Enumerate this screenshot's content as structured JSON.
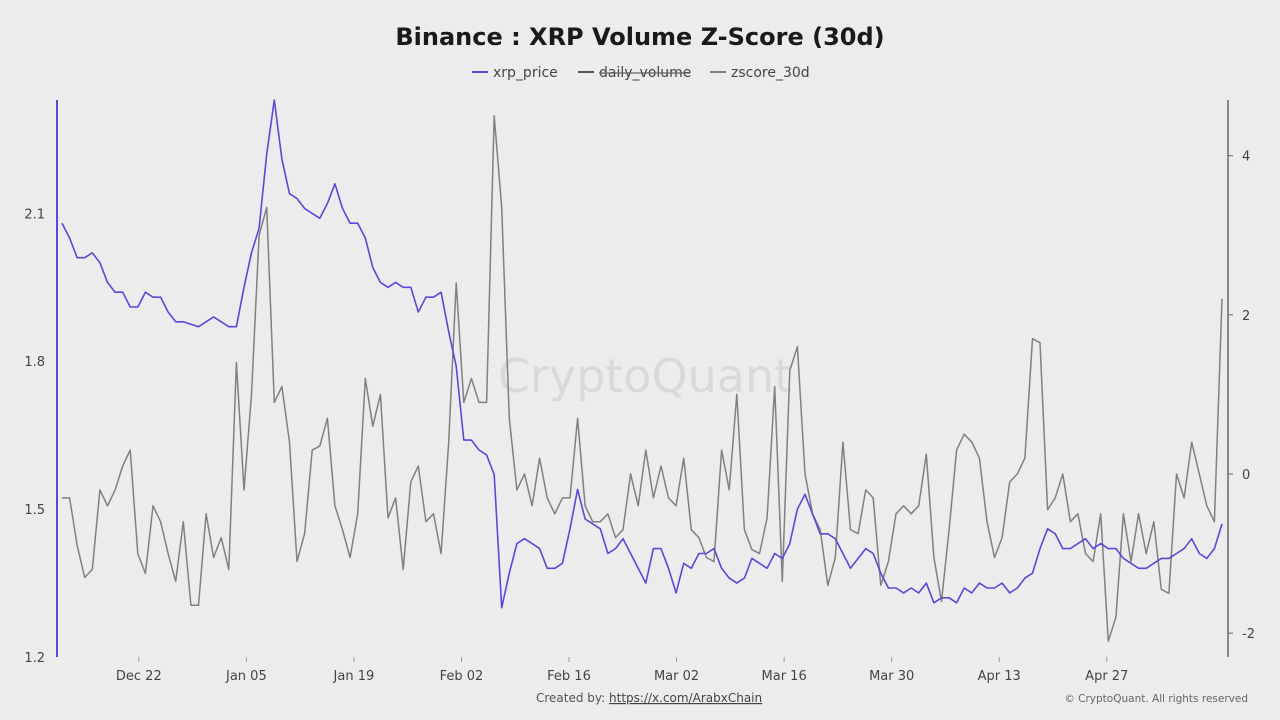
{
  "chart_data": {
    "type": "line",
    "title": "Binance : XRP Volume Z-Score (30d)",
    "legend_position": "top-center",
    "watermark": "CryptoQuant",
    "footer_created_by": "Created by: ",
    "footer_link": "https://x.com/ArabxChain",
    "footer_copyright": "© CryptoQuant. All rights reserved",
    "x_tick_labels": [
      "Dec 22",
      "Jan 05",
      "Jan 19",
      "Feb 02",
      "Feb 16",
      "Mar 02",
      "Mar 16",
      "Mar 30",
      "Apr 13",
      "Apr 27"
    ],
    "x_tick_days": [
      10,
      24,
      38,
      52,
      66,
      80,
      94,
      108,
      122,
      136
    ],
    "x_range_days": [
      0,
      151
    ],
    "y_left": {
      "range": [
        1.2,
        2.33
      ],
      "ticks": [
        1.2,
        1.5,
        1.8,
        2.1
      ],
      "color": "#5b48d9"
    },
    "y_right": {
      "range": [
        -2.3,
        4.7
      ],
      "ticks": [
        -2,
        0,
        2,
        4
      ],
      "color": "#555555"
    },
    "grid": false,
    "series": [
      {
        "name": "xrp_price",
        "axis": "left",
        "color": "#5b48d9",
        "hidden": false,
        "values": [
          2.08,
          2.05,
          2.01,
          2.01,
          2.02,
          2.0,
          1.96,
          1.94,
          1.94,
          1.91,
          1.91,
          1.94,
          1.93,
          1.93,
          1.9,
          1.88,
          1.88,
          1.875,
          1.87,
          1.88,
          1.89,
          1.88,
          1.87,
          1.87,
          1.95,
          2.02,
          2.07,
          2.22,
          2.33,
          2.21,
          2.14,
          2.13,
          2.11,
          2.1,
          2.09,
          2.12,
          2.16,
          2.11,
          2.08,
          2.08,
          2.05,
          1.99,
          1.96,
          1.95,
          1.96,
          1.95,
          1.95,
          1.9,
          1.93,
          1.93,
          1.94,
          1.86,
          1.79,
          1.64,
          1.64,
          1.62,
          1.61,
          1.57,
          1.3,
          1.37,
          1.43,
          1.44,
          1.43,
          1.42,
          1.38,
          1.38,
          1.39,
          1.46,
          1.54,
          1.48,
          1.47,
          1.46,
          1.41,
          1.42,
          1.44,
          1.41,
          1.38,
          1.35,
          1.42,
          1.42,
          1.38,
          1.33,
          1.39,
          1.38,
          1.41,
          1.41,
          1.42,
          1.38,
          1.36,
          1.35,
          1.36,
          1.4,
          1.39,
          1.38,
          1.41,
          1.4,
          1.43,
          1.5,
          1.53,
          1.49,
          1.45,
          1.45,
          1.44,
          1.41,
          1.38,
          1.4,
          1.42,
          1.41,
          1.37,
          1.34,
          1.34,
          1.33,
          1.34,
          1.33,
          1.35,
          1.31,
          1.32,
          1.32,
          1.31,
          1.34,
          1.33,
          1.35,
          1.34,
          1.34,
          1.35,
          1.33,
          1.34,
          1.36,
          1.37,
          1.42,
          1.46,
          1.45,
          1.42,
          1.42,
          1.43,
          1.44,
          1.42,
          1.43,
          1.42,
          1.42,
          1.4,
          1.39,
          1.38,
          1.38,
          1.39,
          1.4,
          1.4,
          1.41,
          1.42,
          1.44,
          1.41,
          1.4,
          1.42,
          1.47
        ]
      },
      {
        "name": "daily_volume",
        "axis": "right",
        "color": "#555555",
        "hidden": true,
        "values": []
      },
      {
        "name": "zscore_30d",
        "axis": "right",
        "color": "#808080",
        "hidden": false,
        "values": [
          -0.3,
          -0.3,
          -0.9,
          -1.3,
          -1.2,
          -0.2,
          -0.4,
          -0.2,
          0.1,
          0.3,
          -1.0,
          -1.25,
          -0.4,
          -0.6,
          -1.0,
          -1.35,
          -0.6,
          -1.65,
          -1.65,
          -0.5,
          -1.05,
          -0.8,
          -1.2,
          1.4,
          -0.2,
          1.0,
          3.0,
          3.35,
          0.9,
          1.1,
          0.4,
          -1.1,
          -0.75,
          0.3,
          0.35,
          0.7,
          -0.4,
          -0.7,
          -1.05,
          -0.5,
          1.2,
          0.6,
          1.0,
          -0.55,
          -0.3,
          -1.2,
          -0.1,
          0.1,
          -0.6,
          -0.5,
          -1.0,
          0.4,
          2.4,
          0.9,
          1.2,
          0.9,
          0.9,
          4.5,
          3.35,
          0.7,
          -0.2,
          0.0,
          -0.4,
          0.2,
          -0.3,
          -0.5,
          -0.3,
          -0.3,
          0.7,
          -0.4,
          -0.6,
          -0.6,
          -0.5,
          -0.8,
          -0.7,
          0.0,
          -0.4,
          0.3,
          -0.3,
          0.1,
          -0.3,
          -0.4,
          0.2,
          -0.7,
          -0.8,
          -1.05,
          -1.1,
          0.3,
          -0.2,
          1.0,
          -0.7,
          -0.95,
          -1.0,
          -0.55,
          1.1,
          -1.35,
          1.3,
          1.6,
          0.0,
          -0.5,
          -0.7,
          -1.4,
          -1.05,
          0.4,
          -0.7,
          -0.75,
          -0.2,
          -0.3,
          -1.4,
          -1.1,
          -0.5,
          -0.4,
          -0.5,
          -0.4,
          0.25,
          -1.05,
          -1.6,
          -0.7,
          0.3,
          0.5,
          0.4,
          0.2,
          -0.6,
          -1.05,
          -0.8,
          -0.1,
          0.0,
          0.2,
          1.7,
          1.65,
          -0.45,
          -0.3,
          0.0,
          -0.6,
          -0.5,
          -1.0,
          -1.1,
          -0.5,
          -2.1,
          -1.8,
          -0.5,
          -1.1,
          -0.5,
          -1.0,
          -0.6,
          -1.45,
          -1.5,
          0.0,
          -0.3,
          0.4,
          0.0,
          -0.4,
          -0.6,
          2.2
        ]
      }
    ]
  }
}
